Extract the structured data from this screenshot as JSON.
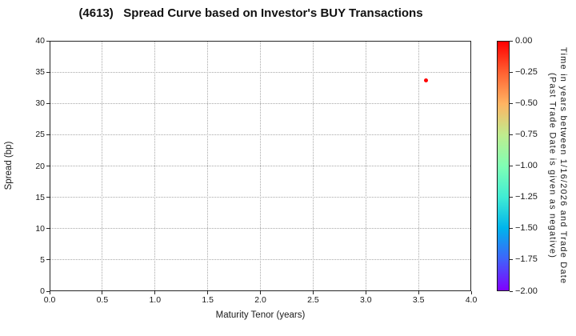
{
  "chart_data": {
    "type": "scatter",
    "title": "(4613)   Spread Curve based on Investor's BUY Transactions",
    "xlabel": "Maturity Tenor (years)",
    "ylabel": "Spread (bp)",
    "xlim": [
      0.0,
      4.0
    ],
    "ylim": [
      0,
      40
    ],
    "grid": true,
    "xticks": [
      0,
      0.5,
      1,
      1.5,
      2,
      2.5,
      3,
      3.5,
      4
    ],
    "xtick_labels": [
      "0.0",
      "0.5",
      "1.0",
      "1.5",
      "2.0",
      "2.5",
      "3.0",
      "3.5",
      "4.0"
    ],
    "yticks": [
      0,
      5,
      10,
      15,
      20,
      25,
      30,
      35,
      40
    ],
    "ytick_labels": [
      "0",
      "5",
      "10",
      "15",
      "20",
      "25",
      "30",
      "35",
      "40"
    ],
    "points": [
      {
        "x": 3.57,
        "y": 33.7,
        "color_value": 0.0,
        "color": "#ff0000"
      }
    ],
    "colorbar": {
      "label_line1": "Time in years between 1/16/2026 and Trade Date",
      "label_line2": "(Past Trade Date is given as negative)",
      "vmax": 0.0,
      "vmin": -2.0,
      "tick_values": [
        0,
        -0.25,
        -0.5,
        -0.75,
        -1,
        -1.25,
        -1.5,
        -1.75,
        -2
      ],
      "tick_labels": [
        "0.00",
        "−0.25",
        "−0.50",
        "−0.75",
        "−1.00",
        "−1.25",
        "−1.50",
        "−1.75",
        "−2.00"
      ],
      "colormap": "rainbow",
      "gradient_stops": [
        {
          "pos": 0.0,
          "color": "#ff0000"
        },
        {
          "pos": 0.125,
          "color": "#ff6232"
        },
        {
          "pos": 0.25,
          "color": "#ffb462"
        },
        {
          "pos": 0.375,
          "color": "#bfec8e"
        },
        {
          "pos": 0.5,
          "color": "#80ffb4"
        },
        {
          "pos": 0.625,
          "color": "#40ecd4"
        },
        {
          "pos": 0.75,
          "color": "#00b4ec"
        },
        {
          "pos": 0.875,
          "color": "#4062fa"
        },
        {
          "pos": 1.0,
          "color": "#8000ff"
        }
      ]
    },
    "colors": {
      "point": "#ff0000",
      "gridline": "#a8a8a8",
      "spine": "#262626",
      "text": "#1a1a1a"
    }
  }
}
